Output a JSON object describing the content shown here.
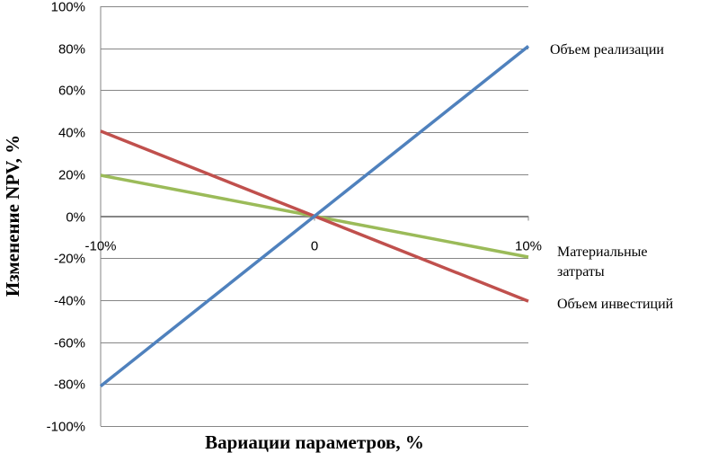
{
  "chart_data": {
    "type": "line",
    "title": "",
    "xlabel": "Вариации параметров, %",
    "ylabel": "Изменение NPV, %",
    "x_ticks": [
      "-10%",
      "0",
      "10%"
    ],
    "x": [
      -10,
      0,
      10
    ],
    "y_ticks": [
      "100%",
      "80%",
      "60%",
      "40%",
      "20%",
      "0%",
      "-20%",
      "-40%",
      "-60%",
      "-80%",
      "-100%"
    ],
    "ylim": [
      -100,
      100
    ],
    "grid": true,
    "legend_position": "right",
    "series": [
      {
        "name": "Объем реализации",
        "values": [
          -81,
          0,
          81
        ],
        "color": "#4f81bd"
      },
      {
        "name": "Материальные затраты",
        "name_lines": [
          "Материальные",
          "затраты"
        ],
        "values": [
          19.5,
          0,
          -19.5
        ],
        "color": "#9bbb59"
      },
      {
        "name": "Объем инвестиций",
        "values": [
          40.5,
          0,
          -40.5
        ],
        "color": "#c0504d"
      }
    ]
  }
}
